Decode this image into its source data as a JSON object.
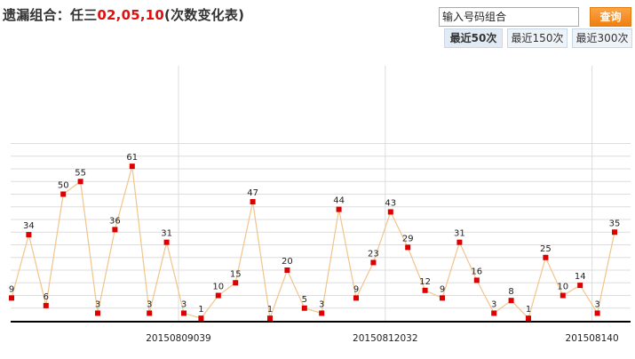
{
  "header": {
    "title_prefix": "遗漏组合：任三",
    "title_numbers": "02,05,10",
    "title_suffix": "(次数变化表)"
  },
  "search": {
    "placeholder": "输入号码组合",
    "button_label": "查询"
  },
  "range_tabs": [
    {
      "label": "最近50次",
      "active": true
    },
    {
      "label": "最近150次",
      "active": false
    },
    {
      "label": "最近300次",
      "active": false
    }
  ],
  "colors": {
    "line": "#f2c48a",
    "point": "#dd0000",
    "grid": "#dddddd",
    "axis": "#000000",
    "active_button": "#f5922a"
  },
  "chart_data": {
    "type": "line",
    "series": [
      {
        "values": [
          9,
          34,
          6,
          50,
          55,
          3,
          36,
          61,
          3,
          31,
          3,
          1,
          10,
          15,
          47,
          1,
          20,
          5,
          3,
          44,
          9,
          23,
          43,
          29,
          12,
          9,
          31,
          16,
          3,
          8,
          1,
          25,
          10,
          14,
          3,
          35
        ]
      }
    ],
    "x_tick_labels": [
      "20150809039",
      "20150812032",
      "201508140"
    ],
    "x_tick_indices": [
      10,
      22,
      34
    ],
    "ylim": [
      0,
      72
    ],
    "y_gridlines": [
      0,
      5,
      10,
      15,
      20,
      25,
      30,
      35,
      40,
      45,
      50,
      55,
      60,
      65,
      70
    ],
    "grid": true,
    "legend": "none"
  }
}
